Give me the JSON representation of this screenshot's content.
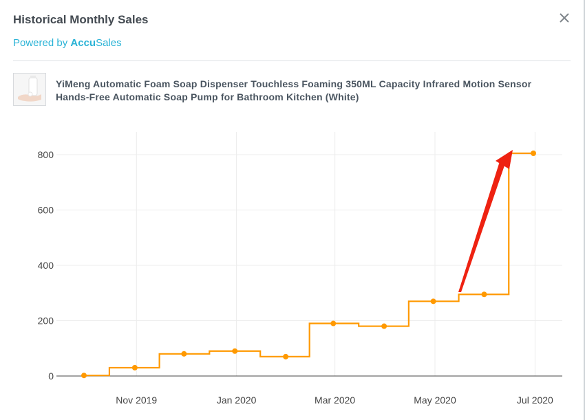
{
  "modal": {
    "title": "Historical Monthly Sales",
    "powered_prefix": "Powered by",
    "brand_part1": "Accu",
    "brand_part2": "Sales",
    "close_icon": "close-icon"
  },
  "product": {
    "thumbnail_icon": "soap-dispenser-image",
    "name": "YiMeng Automatic Foam Soap Dispenser Touchless Foaming 350ML Capacity Infrared Motion Sensor Hands-Free Automatic Soap Pump for Bathroom Kitchen (White)"
  },
  "chart_data": {
    "type": "line",
    "line_shape": "step",
    "color": "#ff9900",
    "x_tick_labels": [
      "Nov 2019",
      "Jan 2020",
      "Mar 2020",
      "May 2020",
      "Jul 2020"
    ],
    "y_ticks": [
      0,
      200,
      400,
      600,
      800
    ],
    "ylim": [
      0,
      850
    ],
    "grid": true,
    "series": [
      {
        "x": [
          "2019-09-30",
          "2019-10-31",
          "2019-11-30",
          "2019-12-31",
          "2020-01-31",
          "2020-02-29",
          "2020-03-31",
          "2020-04-30",
          "2020-05-31",
          "2020-06-30"
        ],
        "values": [
          2,
          30,
          80,
          90,
          70,
          190,
          180,
          270,
          295,
          805
        ]
      }
    ],
    "annotation": {
      "type": "arrow",
      "color": "#ee2211"
    }
  }
}
